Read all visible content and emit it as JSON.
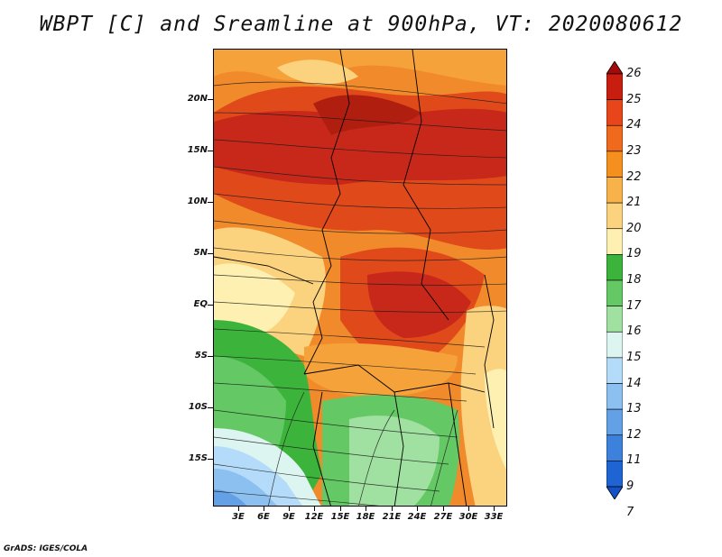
{
  "title": "WBPT [C] and Sreamline at 900hPa, VT: 2020080612",
  "footer": "GrADS: IGES/COLA",
  "y_axis_labels": [
    "20N",
    "15N",
    "10N",
    "5N",
    "EQ",
    "5S",
    "10S",
    "15S"
  ],
  "x_axis_labels": [
    "3E",
    "6E",
    "9E",
    "12E",
    "15E",
    "18E",
    "21E",
    "24E",
    "27E",
    "30E",
    "33E"
  ],
  "colorbar": {
    "levels": [
      "26",
      "25",
      "24",
      "23",
      "22",
      "21",
      "20",
      "19",
      "18",
      "17",
      "16",
      "15",
      "14",
      "13",
      "12",
      "11",
      "9",
      "7"
    ],
    "colors": [
      "#a50a0a",
      "#c81e10",
      "#e8451a",
      "#f06a1e",
      "#f5901e",
      "#f8b24a",
      "#fbd27e",
      "#fdf0b0",
      "#3cb43c",
      "#64c864",
      "#a0e0a0",
      "#dcf5f0",
      "#b4dcfa",
      "#8cc0f0",
      "#64a0e6",
      "#3c82dc",
      "#1e64d2",
      "#1450c8"
    ]
  },
  "legend": {
    "variable": "WBPT",
    "units": "C",
    "level": "900hPa",
    "valid_time": "2020080612"
  }
}
